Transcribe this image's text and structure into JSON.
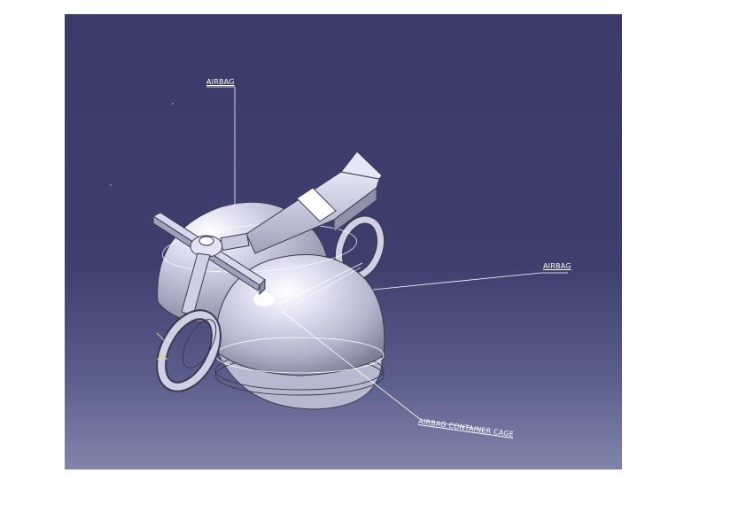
{
  "annotations": {
    "airbag_top": "AIRBAG",
    "airbag_right": "AIRBAG",
    "container_cage": "AIRBAG CONTAINER CAGE"
  },
  "colors": {
    "background_top": "#3a3b69",
    "background_bottom": "#8185ab",
    "part_fill": "#d7d8ee",
    "part_shadow": "#8e90ac",
    "edge": "#3a3a4a",
    "leader_line": "#ffffff"
  }
}
